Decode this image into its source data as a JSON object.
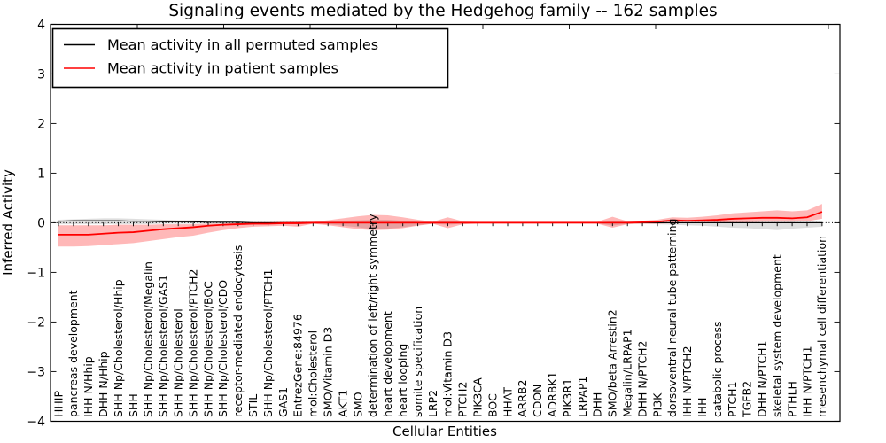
{
  "chart_data": {
    "type": "line",
    "title": "Signaling events mediated by the Hedgehog family -- 162 samples",
    "xlabel": "Cellular Entities",
    "ylabel": "Inferred Activity",
    "ylim": [
      -4,
      4
    ],
    "yticks": [
      4,
      3,
      2,
      1,
      0,
      -1,
      -2,
      -3,
      -4
    ],
    "grid": false,
    "zero_line": "dotted",
    "legend_position": "upper left",
    "categories": [
      "HHIP",
      "pancreas development",
      "IHH N/Hhip",
      "DHH N/Hhip",
      "SHH Np/Cholesterol/Hhip",
      "SHH",
      "SHH Np/Cholesterol/Megalin",
      "SHH Np/Cholesterol/GAS1",
      "SHH Np/Cholesterol",
      "SHH Np/Cholesterol/PTCH2",
      "SHH Np/Cholesterol/BOC",
      "SHH Np/Cholesterol/CDO",
      "receptor-mediated endocytosis",
      "STIL",
      "SHH Np/Cholesterol/PTCH1",
      "GAS1",
      "EntrezGene:84976",
      "mol:Cholesterol",
      "SMO/Vitamin D3",
      "AKT1",
      "SMO",
      "determination of left/right symmetry",
      "heart development",
      "heart looping",
      "somite specification",
      "LRP2",
      "mol:Vitamin D3",
      "PTCH2",
      "PIK3CA",
      "BOC",
      "HHAT",
      "ARRB2",
      "CDON",
      "ADRBK1",
      "PIK3R1",
      "LRPAP1",
      "DHH",
      "SMO/beta Arrestin2",
      "Megalin/LRPAP1",
      "DHH N/PTCH2",
      "PI3K",
      "dorsoventral neural tube patterning",
      "IHH N/PTCH2",
      "IHH",
      "catabolic process",
      "PTCH1",
      "TGFB2",
      "DHH N/PTCH1",
      "skeletal system development",
      "PTHLH",
      "IHH N/PTCH1",
      "mesenchymal cell differentiation"
    ],
    "series": [
      {
        "name": "Mean activity in all permuted samples",
        "color": "#000000",
        "values": [
          0.03,
          0.04,
          0.04,
          0.04,
          0.04,
          0.03,
          0.03,
          0.02,
          0.02,
          0.02,
          0.01,
          0.01,
          0.01,
          0.0,
          0.0,
          0.0,
          0.0,
          0.0,
          0.0,
          0.0,
          0.0,
          0.0,
          0.0,
          0.0,
          0.0,
          0.0,
          0.0,
          0.0,
          0.0,
          0.0,
          0.0,
          0.0,
          0.0,
          0.0,
          0.0,
          0.0,
          0.0,
          0.0,
          0.0,
          0.0,
          0.0,
          0.0,
          0.0,
          0.0,
          0.0,
          0.0,
          0.0,
          0.0,
          0.0,
          0.0,
          0.0,
          0.0
        ],
        "band": {
          "name": "permuted-confidence-band",
          "color": "#000000",
          "opacity": 0.13,
          "low": [
            -0.03,
            -0.03,
            -0.03,
            -0.03,
            -0.03,
            -0.03,
            -0.03,
            -0.02,
            -0.02,
            -0.02,
            -0.02,
            -0.02,
            -0.02,
            -0.02,
            -0.02,
            -0.02,
            -0.03,
            -0.02,
            -0.03,
            -0.06,
            -0.09,
            -0.13,
            -0.12,
            -0.09,
            -0.05,
            -0.02,
            -0.04,
            -0.02,
            -0.01,
            -0.01,
            -0.01,
            -0.01,
            -0.01,
            -0.01,
            -0.01,
            -0.01,
            -0.01,
            -0.06,
            -0.02,
            -0.02,
            -0.03,
            -0.04,
            -0.05,
            -0.06,
            -0.08,
            -0.1,
            -0.11,
            -0.13,
            -0.15,
            -0.12,
            -0.1,
            -0.08
          ],
          "high": [
            0.06,
            0.07,
            0.08,
            0.09,
            0.09,
            0.08,
            0.07,
            0.06,
            0.05,
            0.05,
            0.04,
            0.03,
            0.03,
            0.02,
            0.02,
            0.02,
            0.02,
            0.02,
            0.03,
            0.04,
            0.05,
            0.06,
            0.06,
            0.04,
            0.02,
            0.02,
            0.03,
            0.02,
            0.01,
            0.01,
            0.01,
            0.01,
            0.01,
            0.01,
            0.01,
            0.01,
            0.01,
            0.03,
            0.02,
            0.02,
            0.02,
            0.02,
            0.02,
            0.02,
            0.03,
            0.03,
            0.03,
            0.03,
            0.03,
            0.03,
            0.04,
            0.04
          ]
        }
      },
      {
        "name": "Mean activity in patient samples",
        "color": "#ff0000",
        "values": [
          -0.24,
          -0.24,
          -0.24,
          -0.22,
          -0.2,
          -0.19,
          -0.16,
          -0.13,
          -0.11,
          -0.09,
          -0.06,
          -0.04,
          -0.03,
          -0.02,
          -0.02,
          -0.01,
          -0.01,
          0.0,
          0.0,
          0.0,
          0.0,
          0.0,
          0.0,
          0.0,
          0.0,
          0.0,
          0.0,
          0.0,
          0.0,
          0.0,
          0.0,
          0.0,
          0.0,
          0.0,
          0.0,
          0.0,
          0.0,
          0.0,
          0.0,
          0.01,
          0.02,
          0.05,
          0.04,
          0.05,
          0.06,
          0.08,
          0.09,
          0.1,
          0.1,
          0.09,
          0.11,
          0.22
        ],
        "band": {
          "name": "patient-confidence-band",
          "color": "#ff0000",
          "opacity": 0.28,
          "low": [
            -0.48,
            -0.48,
            -0.47,
            -0.45,
            -0.43,
            -0.41,
            -0.37,
            -0.33,
            -0.29,
            -0.26,
            -0.2,
            -0.15,
            -0.11,
            -0.08,
            -0.07,
            -0.06,
            -0.08,
            -0.02,
            -0.05,
            -0.09,
            -0.13,
            -0.15,
            -0.14,
            -0.11,
            -0.06,
            -0.02,
            -0.11,
            -0.03,
            -0.02,
            -0.02,
            -0.02,
            -0.02,
            -0.02,
            -0.02,
            -0.02,
            -0.02,
            -0.02,
            -0.1,
            -0.03,
            -0.02,
            -0.02,
            -0.01,
            -0.01,
            0.0,
            0.0,
            0.01,
            0.01,
            0.02,
            0.02,
            0.02,
            0.03,
            0.08
          ],
          "high": [
            -0.05,
            -0.05,
            -0.05,
            -0.05,
            -0.04,
            -0.04,
            -0.04,
            -0.03,
            -0.03,
            -0.03,
            -0.02,
            -0.02,
            -0.01,
            0.01,
            0.01,
            0.02,
            0.03,
            0.02,
            0.05,
            0.09,
            0.13,
            0.16,
            0.15,
            0.11,
            0.06,
            0.02,
            0.11,
            0.03,
            0.02,
            0.02,
            0.02,
            0.02,
            0.02,
            0.02,
            0.02,
            0.02,
            0.02,
            0.12,
            0.03,
            0.04,
            0.06,
            0.11,
            0.1,
            0.12,
            0.15,
            0.19,
            0.21,
            0.23,
            0.25,
            0.23,
            0.25,
            0.38
          ]
        }
      }
    ]
  }
}
